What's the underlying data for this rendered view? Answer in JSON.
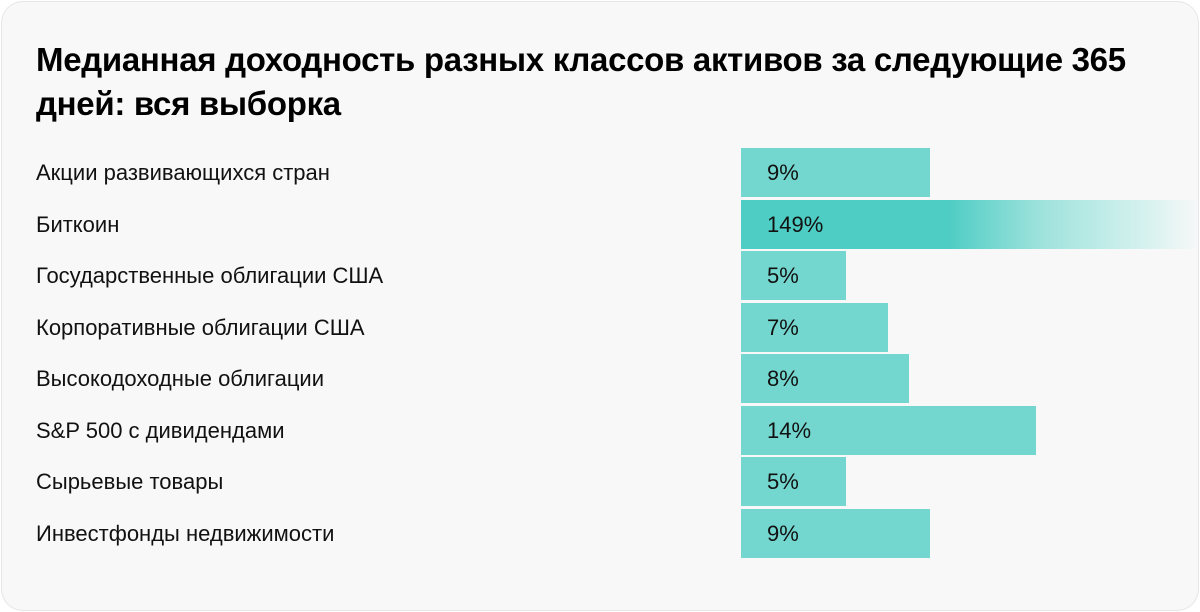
{
  "title": "Медианная доходность разных классов активов за следующие 365 дней: вся выборка",
  "chart_data": {
    "type": "bar",
    "orientation": "horizontal",
    "title": "Медианная доходность разных классов активов за следующие 365 дней: вся выборка",
    "categories": [
      "Акции развивающихся стран",
      "Биткоин",
      "Государственные облигации США",
      "Корпоративные облигации США",
      "Высокодоходные облигации",
      "S&P 500 с дивидендами",
      "Сырьевые товары",
      "Инвестфонды недвижимости"
    ],
    "values": [
      9,
      149,
      5,
      7,
      8,
      14,
      5,
      9
    ],
    "value_labels": [
      "9%",
      "149%",
      "5%",
      "7%",
      "8%",
      "14%",
      "5%",
      "9%"
    ],
    "unit": "%",
    "grid": false,
    "colors": {
      "bar": "#74d7cf",
      "highlight": "#4ecdc4",
      "background": "#f8f8f8"
    },
    "highlight_note": "Bitcoin bar truncated with fading gradient"
  }
}
